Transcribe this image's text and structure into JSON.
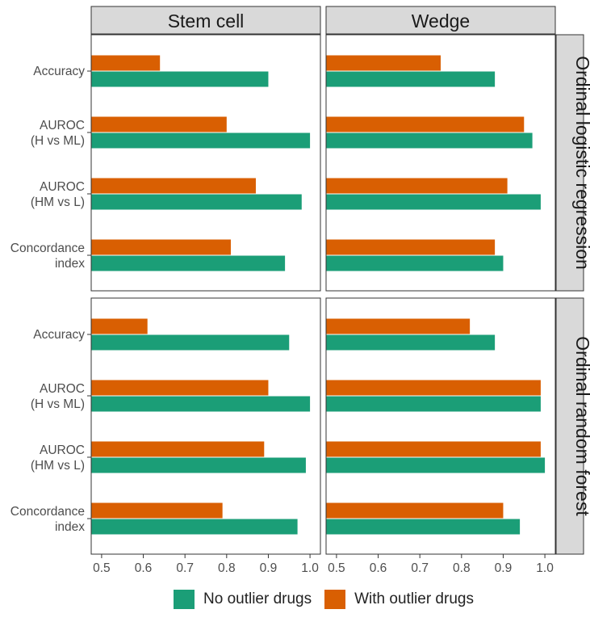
{
  "chart_data": {
    "type": "bar",
    "orientation": "horizontal",
    "xlim": [
      0.475,
      1.025
    ],
    "x_ticks": [
      0.5,
      0.6,
      0.7,
      0.8,
      0.9,
      1.0
    ],
    "x_tick_labels": [
      "0.5",
      "0.6",
      "0.7",
      "0.8",
      "0.9",
      "1.0"
    ],
    "categories": [
      "Accuracy",
      "AUROC\n(H vs ML)",
      "AUROC\n(HM vs L)",
      "Concordance\nindex"
    ],
    "columns": [
      "Stem cell",
      "Wedge"
    ],
    "rows": [
      "Ordinal logistic regression",
      "Ordinal random forest"
    ],
    "series_names": [
      "No outlier drugs",
      "With outlier drugs"
    ],
    "colors": {
      "No outlier drugs": "#1b9e77",
      "With outlier drugs": "#d95f02"
    },
    "panels": [
      {
        "row": 0,
        "col": 0,
        "no_outlier": [
          0.9,
          1.0,
          0.98,
          0.94
        ],
        "with_outlier": [
          0.64,
          0.8,
          0.87,
          0.81
        ]
      },
      {
        "row": 0,
        "col": 1,
        "no_outlier": [
          0.88,
          0.97,
          0.99,
          0.9
        ],
        "with_outlier": [
          0.75,
          0.95,
          0.91,
          0.88
        ]
      },
      {
        "row": 1,
        "col": 0,
        "no_outlier": [
          0.95,
          1.0,
          0.99,
          0.97
        ],
        "with_outlier": [
          0.61,
          0.9,
          0.89,
          0.79
        ]
      },
      {
        "row": 1,
        "col": 1,
        "no_outlier": [
          0.88,
          0.99,
          1.0,
          0.94
        ],
        "with_outlier": [
          0.82,
          0.99,
          0.99,
          0.9
        ]
      }
    ]
  },
  "legend": {
    "no_outlier_label": "No outlier drugs",
    "with_outlier_label": "With outlier drugs"
  }
}
